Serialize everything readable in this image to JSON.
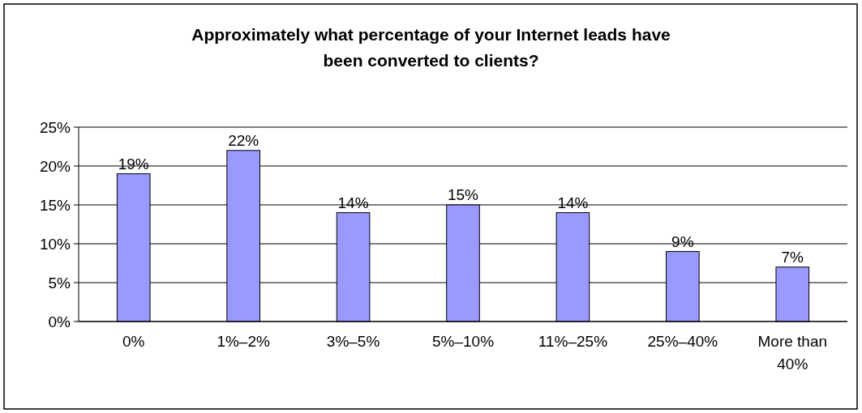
{
  "chart_data": {
    "type": "bar",
    "title": "Approximately what percentage of your Internet leads have been converted to clients?",
    "categories": [
      "0%",
      "1%–2%",
      "3%–5%",
      "5%–10%",
      "11%–25%",
      "25%–40%",
      "More than 40%"
    ],
    "values": [
      19,
      22,
      14,
      15,
      14,
      9,
      7
    ],
    "value_labels": [
      "19%",
      "22%",
      "14%",
      "15%",
      "14%",
      "9%",
      "7%"
    ],
    "color": "#9999ff",
    "grid": "y",
    "ylim": [
      0,
      25
    ],
    "yticks": [
      {
        "value": 0,
        "label": "0%"
      },
      {
        "value": 5,
        "label": "5%"
      },
      {
        "value": 10,
        "label": "10%"
      },
      {
        "value": 15,
        "label": "15%"
      },
      {
        "value": 20,
        "label": "20%"
      },
      {
        "value": 25,
        "label": "25%"
      }
    ]
  }
}
